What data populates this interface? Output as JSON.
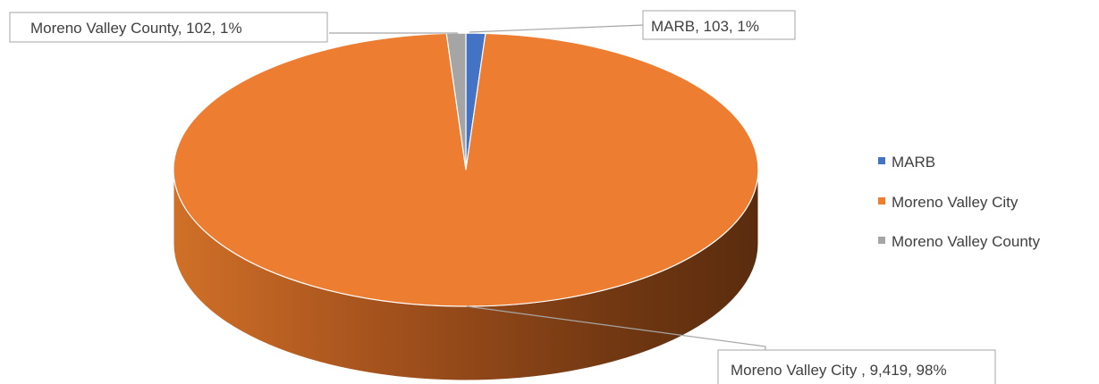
{
  "chart_data": {
    "type": "pie",
    "style": "3d",
    "categories": [
      "MARB",
      "Moreno Valley City",
      "Moreno Valley County"
    ],
    "values": [
      103,
      9419,
      102
    ],
    "percent_labels": [
      "1%",
      "98%",
      "1%"
    ],
    "value_labels": [
      "103",
      "9,419",
      "102"
    ],
    "data_labels": [
      "MARB, 103, 1%",
      "Moreno Valley City , 9,419, 98%",
      "Moreno Valley County, 102, 1%"
    ],
    "colors": [
      "#4472C4",
      "#ED7D31",
      "#A5A5A5"
    ],
    "legend": {
      "position": "right",
      "entries": [
        "MARB",
        "Moreno Valley City",
        "Moreno Valley County"
      ]
    },
    "title": ""
  }
}
